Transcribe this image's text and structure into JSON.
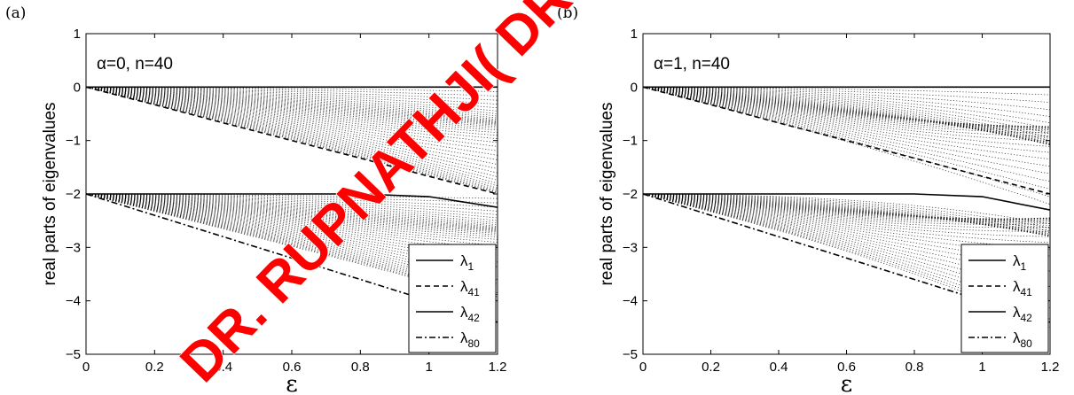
{
  "panels": [
    {
      "tag": "(a)",
      "annotation": "α=0,  n=40",
      "alpha": 0
    },
    {
      "tag": "(b)",
      "annotation": "α=1,  n=40",
      "alpha": 1
    }
  ],
  "watermark": {
    "text": "DR. RUPNATHJI( DR. RUPAK NATH )",
    "color": "#ff0000"
  },
  "chart_data": [
    {
      "type": "line",
      "title": "",
      "xlabel": "ε",
      "ylabel": "real parts of eigenvalues",
      "xlim": [
        0,
        1.2
      ],
      "ylim": [
        -5,
        1
      ],
      "xticks": [
        0,
        0.2,
        0.4,
        0.6,
        0.8,
        1,
        1.2
      ],
      "xtick_labels": [
        "0",
        "0.2",
        "0.4",
        "0.6",
        "0.8",
        "1",
        "1.2"
      ],
      "yticks": [
        -5,
        -4,
        -3,
        -2,
        -1,
        0,
        1
      ],
      "ytick_labels": [
        "−5",
        "−4",
        "−3",
        "−2",
        "−1",
        "0",
        "1"
      ],
      "grid": false,
      "legend_position": "bottom-right",
      "series": [
        {
          "name": "λ1",
          "style": "solid",
          "x": [
            0,
            1.2
          ],
          "y": [
            0,
            0
          ]
        },
        {
          "name": "λ41",
          "style": "dashed",
          "x": [
            0,
            0.2,
            0.4,
            0.6,
            0.8,
            1,
            1.2
          ],
          "y": [
            0,
            -0.33,
            -0.67,
            -1.0,
            -1.33,
            -1.67,
            -2.0
          ]
        },
        {
          "name": "λ42",
          "style": "solid",
          "x": [
            0,
            0.2,
            0.4,
            0.6,
            0.8,
            1,
            1.2
          ],
          "y": [
            -2,
            -2,
            -2,
            -2,
            -2,
            -2.05,
            -2.25
          ]
        },
        {
          "name": "λ80",
          "style": "dashdot",
          "x": [
            0,
            0.2,
            0.4,
            0.6,
            0.8,
            1,
            1.2
          ],
          "y": [
            -2,
            -2.4,
            -2.8,
            -3.2,
            -3.6,
            -4.0,
            -4.4
          ]
        }
      ]
    },
    {
      "type": "line",
      "title": "",
      "xlabel": "ε",
      "ylabel": "real parts of eigenvalues",
      "xlim": [
        0,
        1.2
      ],
      "ylim": [
        -5,
        1
      ],
      "xticks": [
        0,
        0.2,
        0.4,
        0.6,
        0.8,
        1,
        1.2
      ],
      "xtick_labels": [
        "0",
        "0.2",
        "0.4",
        "0.6",
        "0.8",
        "1",
        "1.2"
      ],
      "yticks": [
        -5,
        -4,
        -3,
        -2,
        -1,
        0,
        1
      ],
      "ytick_labels": [
        "−5",
        "−4",
        "−3",
        "−2",
        "−1",
        "0",
        "1"
      ],
      "grid": false,
      "legend_position": "bottom-right",
      "series": [
        {
          "name": "λ1",
          "style": "solid",
          "x": [
            0,
            1.2
          ],
          "y": [
            0,
            0
          ]
        },
        {
          "name": "λ41",
          "style": "dashed",
          "x": [
            0,
            0.2,
            0.4,
            0.6,
            0.8,
            1,
            1.2
          ],
          "y": [
            0,
            -0.33,
            -0.67,
            -1.0,
            -1.33,
            -1.67,
            -2.0
          ]
        },
        {
          "name": "λ42",
          "style": "solid",
          "x": [
            0,
            0.2,
            0.4,
            0.6,
            0.8,
            1,
            1.2
          ],
          "y": [
            -2,
            -2,
            -2,
            -2,
            -2,
            -2.05,
            -2.3
          ]
        },
        {
          "name": "λ80",
          "style": "dashdot",
          "x": [
            0,
            0.2,
            0.4,
            0.6,
            0.8,
            1,
            1.2
          ],
          "y": [
            -2,
            -2.4,
            -2.8,
            -3.2,
            -3.6,
            -4.0,
            -4.4
          ]
        }
      ]
    }
  ]
}
